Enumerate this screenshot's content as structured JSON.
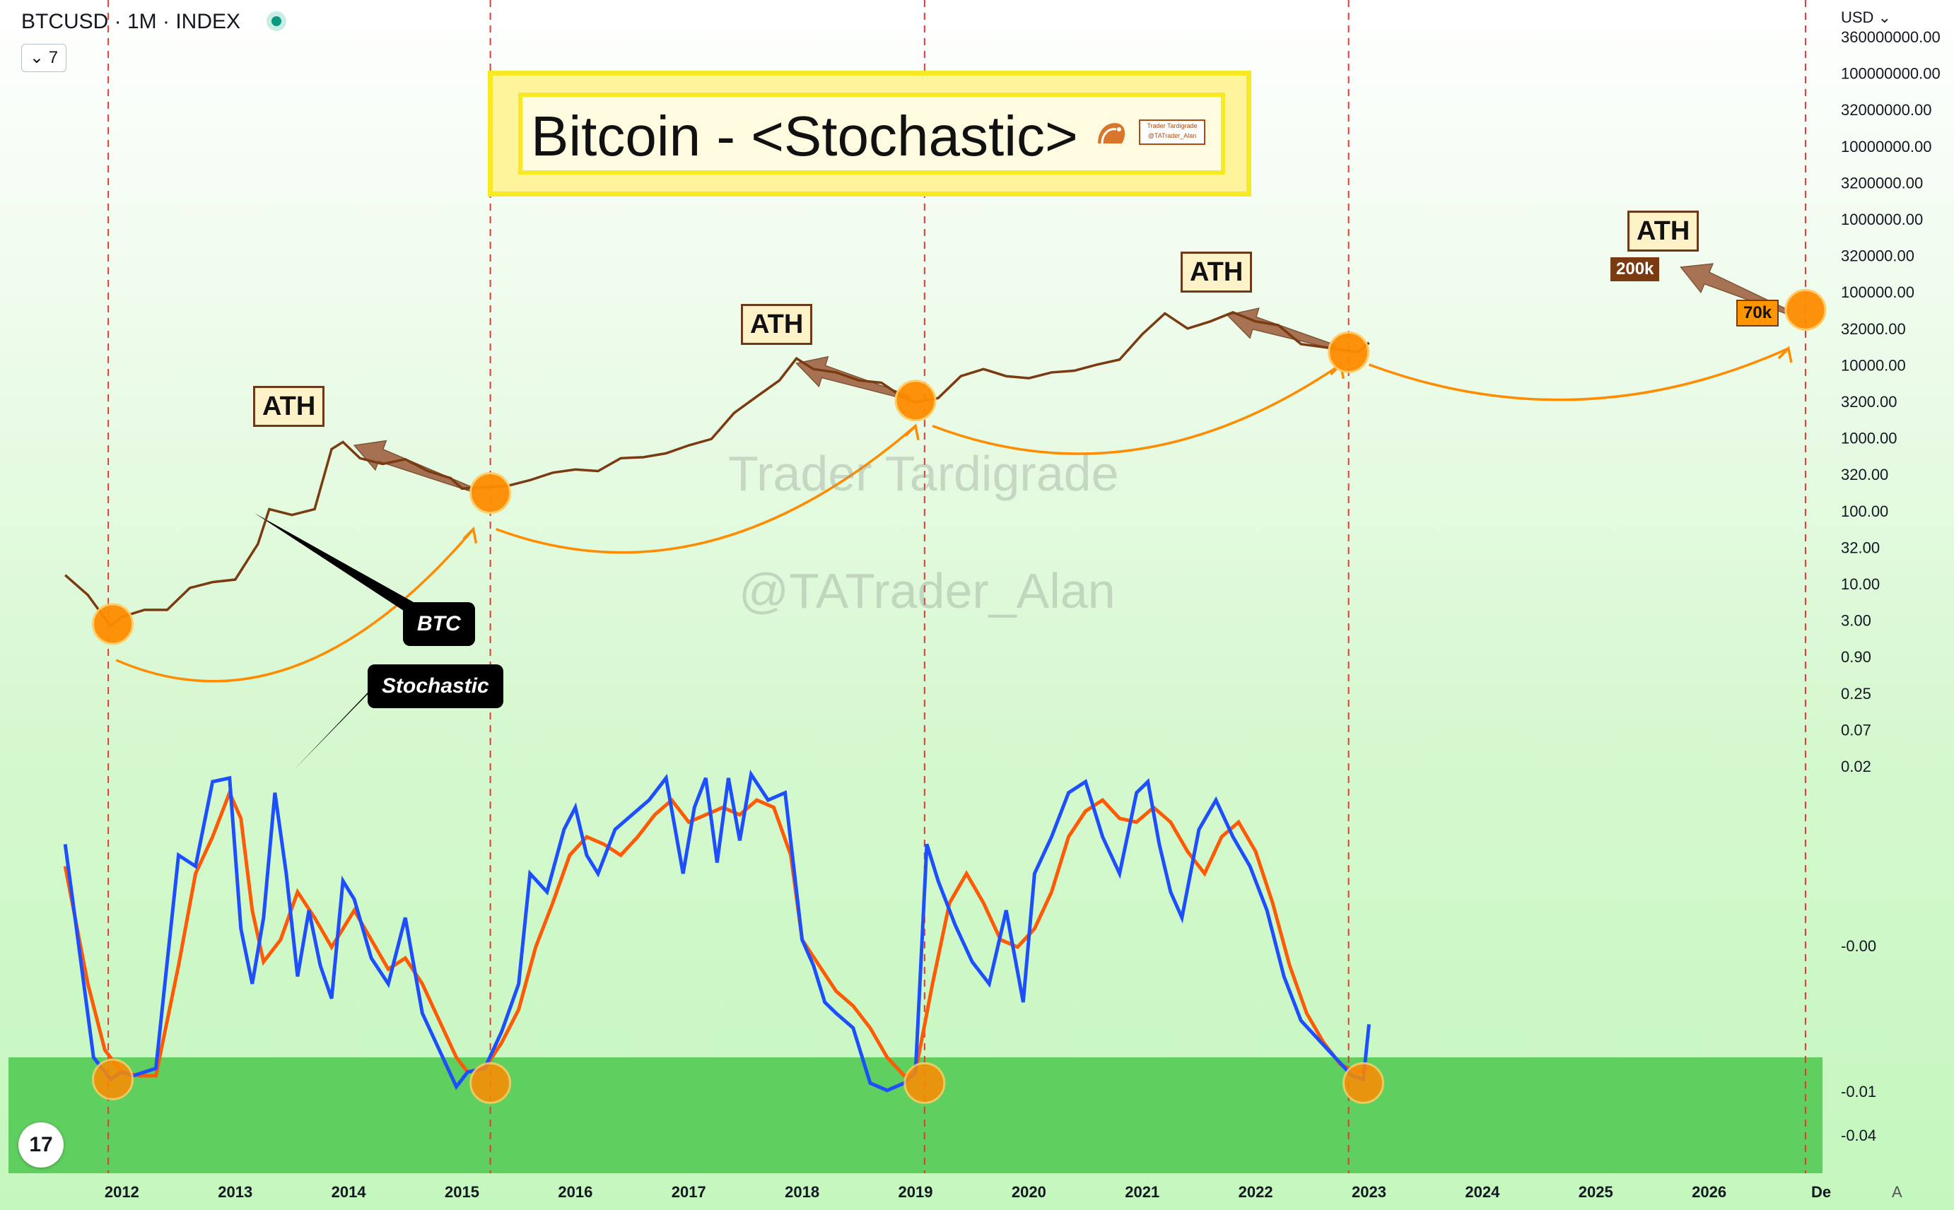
{
  "header": {
    "symbol": "BTCUSD · 1M · INDEX",
    "collapse_label": "7"
  },
  "title": {
    "main": "Bitcoin - <Stochastic>",
    "logo_line1": "Trader Tardigrade",
    "logo_line2": "@TATrader_Alan"
  },
  "watermarks": [
    "Trader Tardigrade",
    "@TATrader_Alan"
  ],
  "currency_label": "USD",
  "callouts": {
    "btc": "BTC",
    "stochastic": "Stochastic"
  },
  "ath_label": "ATH",
  "targets": {
    "price_200k": "200k",
    "price_70k": "70k"
  },
  "corner_label": "A",
  "tv_logo": "17",
  "colors": {
    "btc": "#7a3b12",
    "stoch_k": "#1e4fff",
    "stoch_d": "#ff5a05",
    "highlight": "#ff8c00",
    "cycle_line": "#e53935",
    "oversold_zone": "#5fcf5f",
    "arrow": "#9c5a3a"
  },
  "chart_data": [
    {
      "type": "line",
      "name": "BTC price (log scale)",
      "y_scale": "log",
      "y_tick_labels": [
        "360000000.00",
        "100000000.00",
        "32000000.00",
        "10000000.00",
        "3200000.00",
        "1000000.00",
        "320000.00",
        "100000.00",
        "32000.00",
        "10000.00",
        "3200.00",
        "1000.00",
        "320.00",
        "100.00",
        "32.00",
        "10.00",
        "3.00",
        "0.90",
        "0.25",
        "0.07",
        "0.02"
      ],
      "x_ticks": [
        "2012",
        "2013",
        "2014",
        "2015",
        "2016",
        "2017",
        "2018",
        "2019",
        "2020",
        "2021",
        "2022",
        "2023",
        "2024",
        "2025",
        "2026",
        "De"
      ],
      "series": [
        {
          "name": "BTC",
          "x": [
            2011.5,
            2011.7,
            2011.9,
            2012.0,
            2012.2,
            2012.4,
            2012.6,
            2012.8,
            2013.0,
            2013.2,
            2013.3,
            2013.5,
            2013.7,
            2013.85,
            2013.95,
            2014.1,
            2014.3,
            2014.5,
            2014.7,
            2014.9,
            2015.0,
            2015.2,
            2015.4,
            2015.6,
            2015.8,
            2016.0,
            2016.2,
            2016.4,
            2016.6,
            2016.8,
            2017.0,
            2017.2,
            2017.4,
            2017.6,
            2017.8,
            2017.95,
            2018.1,
            2018.3,
            2018.5,
            2018.7,
            2018.9,
            2019.0,
            2019.2,
            2019.4,
            2019.6,
            2019.8,
            2020.0,
            2020.2,
            2020.4,
            2020.6,
            2020.8,
            2021.0,
            2021.2,
            2021.4,
            2021.6,
            2021.8,
            2022.0,
            2022.2,
            2022.4,
            2022.6,
            2022.9,
            2023.0
          ],
          "y": [
            15,
            8,
            3,
            4,
            5,
            5,
            10,
            12,
            13,
            40,
            120,
            100,
            120,
            800,
            1000,
            600,
            500,
            580,
            400,
            320,
            230,
            240,
            250,
            300,
            380,
            420,
            400,
            600,
            620,
            700,
            900,
            1100,
            2500,
            4200,
            7000,
            14000,
            10000,
            9000,
            7000,
            6500,
            4000,
            3500,
            4000,
            8000,
            10000,
            8000,
            7500,
            9000,
            9500,
            11500,
            13500,
            30000,
            58000,
            36000,
            45000,
            60000,
            45000,
            40000,
            22000,
            20000,
            17000,
            23000
          ]
        }
      ]
    },
    {
      "type": "line",
      "name": "Stochastic oscillator",
      "y_tick_labels": [
        "-0.00",
        "-0.01",
        "-0.04"
      ],
      "oversold_zone": [
        0,
        20
      ],
      "ylim": [
        0,
        100
      ],
      "series": [
        {
          "name": "%K",
          "x": [
            2011.5,
            2011.6,
            2011.75,
            2011.9,
            2012.0,
            2012.1,
            2012.3,
            2012.5,
            2012.65,
            2012.8,
            2012.95,
            2013.05,
            2013.15,
            2013.25,
            2013.35,
            2013.45,
            2013.55,
            2013.65,
            2013.75,
            2013.85,
            2013.95,
            2014.05,
            2014.2,
            2014.35,
            2014.5,
            2014.65,
            2014.8,
            2014.95,
            2015.05,
            2015.2,
            2015.35,
            2015.5,
            2015.6,
            2015.75,
            2015.9,
            2016.0,
            2016.1,
            2016.2,
            2016.35,
            2016.5,
            2016.65,
            2016.8,
            2016.95,
            2017.05,
            2017.15,
            2017.25,
            2017.35,
            2017.45,
            2017.55,
            2017.7,
            2017.85,
            2018.0,
            2018.1,
            2018.2,
            2018.3,
            2018.45,
            2018.6,
            2018.75,
            2018.9,
            2019.0,
            2019.1,
            2019.2,
            2019.35,
            2019.5,
            2019.65,
            2019.8,
            2019.95,
            2020.05,
            2020.2,
            2020.35,
            2020.5,
            2020.65,
            2020.8,
            2020.95,
            2021.05,
            2021.15,
            2021.25,
            2021.35,
            2021.5,
            2021.65,
            2021.8,
            2021.95,
            2022.1,
            2022.25,
            2022.4,
            2022.55,
            2022.7,
            2022.85,
            2022.95,
            2023.0
          ],
          "y": [
            78,
            55,
            20,
            14,
            16,
            15,
            17,
            75,
            72,
            95,
            96,
            55,
            40,
            58,
            92,
            70,
            42,
            60,
            45,
            36,
            68,
            63,
            47,
            40,
            58,
            32,
            22,
            12,
            16,
            17,
            27,
            40,
            70,
            65,
            82,
            88,
            75,
            70,
            82,
            86,
            90,
            96,
            70,
            88,
            96,
            73,
            96,
            79,
            97,
            90,
            92,
            52,
            45,
            35,
            32,
            28,
            13,
            11,
            13,
            16,
            78,
            68,
            56,
            46,
            40,
            60,
            35,
            70,
            80,
            92,
            95,
            80,
            70,
            92,
            95,
            78,
            65,
            58,
            82,
            90,
            80,
            72,
            60,
            42,
            30,
            25,
            20,
            15,
            14,
            29
          ]
        },
        {
          "name": "%D",
          "x": [
            2011.5,
            2011.7,
            2011.85,
            2012.0,
            2012.15,
            2012.3,
            2012.5,
            2012.65,
            2012.8,
            2012.95,
            2013.05,
            2013.15,
            2013.25,
            2013.4,
            2013.55,
            2013.7,
            2013.85,
            2013.95,
            2014.05,
            2014.2,
            2014.35,
            2014.5,
            2014.65,
            2014.8,
            2014.95,
            2015.05,
            2015.2,
            2015.35,
            2015.5,
            2015.65,
            2015.8,
            2015.95,
            2016.1,
            2016.25,
            2016.4,
            2016.55,
            2016.7,
            2016.85,
            2017.0,
            2017.15,
            2017.3,
            2017.45,
            2017.6,
            2017.75,
            2017.9,
            2018.0,
            2018.15,
            2018.3,
            2018.45,
            2018.6,
            2018.75,
            2018.9,
            2019.0,
            2019.15,
            2019.3,
            2019.45,
            2019.6,
            2019.75,
            2019.9,
            2020.05,
            2020.2,
            2020.35,
            2020.5,
            2020.65,
            2020.8,
            2020.95,
            2021.1,
            2021.25,
            2021.4,
            2021.55,
            2021.7,
            2021.85,
            2022.0,
            2022.15,
            2022.3,
            2022.45,
            2022.6,
            2022.75,
            2022.9,
            2023.0
          ],
          "y": [
            72,
            40,
            22,
            16,
            15,
            15,
            45,
            70,
            80,
            92,
            85,
            60,
            46,
            52,
            65,
            58,
            50,
            55,
            60,
            52,
            44,
            47,
            40,
            30,
            20,
            16,
            17,
            24,
            33,
            50,
            62,
            75,
            80,
            78,
            75,
            80,
            86,
            90,
            84,
            86,
            88,
            86,
            90,
            88,
            75,
            52,
            45,
            38,
            34,
            28,
            20,
            15,
            16,
            40,
            62,
            70,
            62,
            52,
            50,
            55,
            65,
            80,
            87,
            90,
            85,
            84,
            88,
            84,
            76,
            70,
            80,
            84,
            76,
            62,
            45,
            32,
            24,
            18,
            16,
            17
          ]
        }
      ]
    }
  ]
}
